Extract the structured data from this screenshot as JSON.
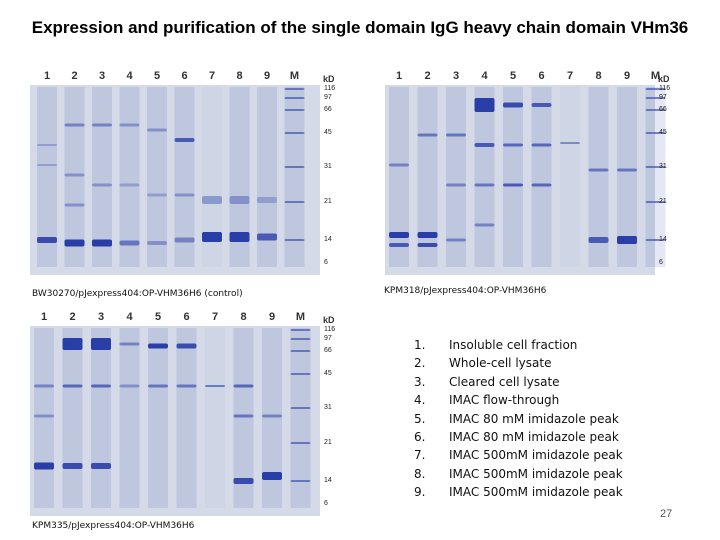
{
  "slide": {
    "title": "Expression and purification of the single domain IgG heavy chain domain VHm36",
    "page_number": "27"
  },
  "colors": {
    "gel_background": "#d4dae8",
    "band_color": "#2a3ea8",
    "background": "#ffffff"
  },
  "gels": [
    {
      "caption": "BW30270/pJexpress404:OP-VHM36H6 (control)",
      "lanes": [
        "1",
        "2",
        "3",
        "4",
        "5",
        "6",
        "7",
        "8",
        "9",
        "M"
      ],
      "unit": "kD",
      "markers": [
        "116",
        "97",
        "66",
        "45",
        "31",
        "21",
        "14",
        "6"
      ]
    },
    {
      "caption": "KPM318/pJexpress404:OP-VHM36H6",
      "lanes": [
        "1",
        "2",
        "3",
        "4",
        "5",
        "6",
        "7",
        "8",
        "9",
        "M"
      ],
      "unit": "kD",
      "markers": [
        "116",
        "97",
        "66",
        "45",
        "31",
        "21",
        "14",
        "6"
      ]
    },
    {
      "caption": "KPM335/pJexpress404:OP-VHM36H6",
      "lanes": [
        "1",
        "2",
        "3",
        "4",
        "5",
        "6",
        "7",
        "8",
        "9",
        "M"
      ],
      "unit": "kD",
      "markers": [
        "116",
        "97",
        "66",
        "45",
        "31",
        "21",
        "14",
        "6"
      ]
    }
  ],
  "legend": [
    {
      "num": "1.",
      "text": "Insoluble cell fraction"
    },
    {
      "num": "2.",
      "text": "Whole-cell lysate"
    },
    {
      "num": "3.",
      "text": "Cleared cell lysate"
    },
    {
      "num": "4.",
      "text": "IMAC flow-through"
    },
    {
      "num": "5.",
      "text": "IMAC 80 mM imidazole peak"
    },
    {
      "num": "6.",
      "text": "IMAC 80 mM imidazole peak"
    },
    {
      "num": "7.",
      "text": "IMAC 500mM imidazole peak"
    },
    {
      "num": "8.",
      "text": "IMAC 500mM imidazole peak"
    },
    {
      "num": "9.",
      "text": "IMAC 500mM imidazole peak"
    }
  ]
}
